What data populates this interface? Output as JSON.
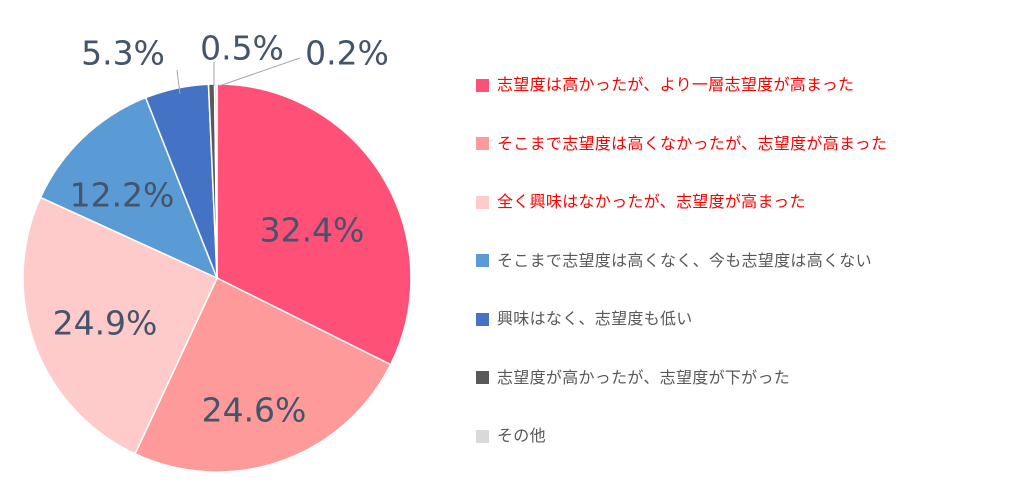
{
  "chart_data": {
    "type": "pie",
    "title": "",
    "legend_position": "right",
    "slices": [
      {
        "label": "志望度は高かったが、より一層志望度が高まった",
        "value": 32.4,
        "display": "32.4%",
        "color": "#ff5077",
        "text_color": "#ff0000"
      },
      {
        "label": "そこまで志望度は高くなかったが、志望度が高まった",
        "value": 24.6,
        "display": "24.6%",
        "color": "#ff9a9a",
        "text_color": "#ff0000"
      },
      {
        "label": "全く興味はなかったが、志望度が高まった",
        "value": 24.9,
        "display": "24.9%",
        "color": "#ffcaca",
        "text_color": "#ff0000"
      },
      {
        "label": "そこまで志望度は高くなく、今も志望度は高くない",
        "value": 12.2,
        "display": "12.2%",
        "color": "#5b9bd5",
        "text_color": "#595959"
      },
      {
        "label": "興味はなく、志望度も低い",
        "value": 5.3,
        "display": "5.3%",
        "color": "#4472c4",
        "text_color": "#595959"
      },
      {
        "label": "志望度が高かったが、志望度が下がった",
        "value": 0.5,
        "display": "0.5%",
        "color": "#595959",
        "text_color": "#595959"
      },
      {
        "label": "その他",
        "value": 0.2,
        "display": "0.2%",
        "color": "#d9d9d9",
        "text_color": "#595959"
      }
    ]
  }
}
